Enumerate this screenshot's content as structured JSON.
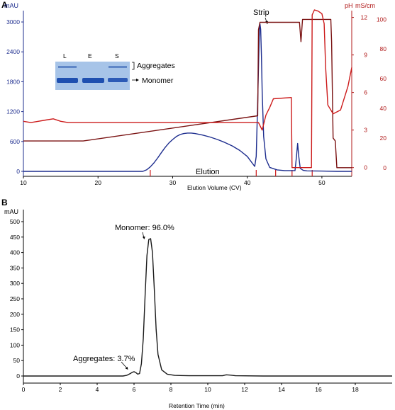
{
  "panels": {
    "a_label": "A",
    "b_label": "B"
  },
  "chart_data": [
    {
      "type": "line",
      "panel": "A",
      "xlabel": "Elution Volume (CV)",
      "xlim": [
        10,
        54
      ],
      "xticks": [
        10,
        20,
        30,
        40,
        50
      ],
      "left_axis": {
        "label": "mAU",
        "ylim": [
          0,
          3100
        ],
        "ticks": [
          0,
          600,
          1200,
          1800,
          2400,
          3000
        ],
        "color": "#1d2d8e"
      },
      "right_axis_1": {
        "label": "pH",
        "ylim": [
          -0.3,
          13.0
        ],
        "ticks": [
          0,
          3,
          6,
          9,
          12
        ],
        "color": "#b01818"
      },
      "right_axis_2": {
        "label": "mS/cm",
        "ylim": [
          -2.5,
          108
        ],
        "ticks": [
          0,
          20,
          40,
          60,
          80,
          100
        ],
        "color": "#b01818"
      },
      "annotations": {
        "strip": "Strip",
        "elution": "Elution"
      },
      "fraction_marks_x": [
        27.0,
        41.2,
        43.8,
        46.0,
        48.7
      ],
      "series": [
        {
          "axis": "left",
          "color": "#1d2d8e",
          "x": [
            10,
            26,
            26.5,
            27,
            27.5,
            28,
            28.5,
            29,
            29.5,
            30,
            30.5,
            31,
            31.5,
            32,
            32.5,
            33,
            34,
            35,
            36,
            37,
            38,
            39,
            40,
            40.5,
            41,
            41.2,
            41.4,
            41.6,
            41.7,
            41.8,
            41.9,
            42,
            42.2,
            42.5,
            43,
            44,
            45,
            46.4,
            46.6,
            46.75,
            46.9,
            47.1,
            47.5,
            48,
            50,
            52,
            54
          ],
          "y": [
            0,
            0,
            30,
            90,
            170,
            270,
            380,
            480,
            570,
            640,
            700,
            740,
            760,
            770,
            770,
            760,
            730,
            690,
            640,
            580,
            510,
            420,
            300,
            200,
            100,
            300,
            1400,
            2700,
            2960,
            2850,
            2300,
            1600,
            700,
            250,
            80,
            30,
            15,
            15,
            300,
            560,
            300,
            60,
            20,
            10,
            5,
            0,
            0
          ]
        },
        {
          "axis": "right_2",
          "color": "#7a1212",
          "name_hint": "conductivity",
          "x": [
            10,
            18,
            41.4,
            41.5,
            41.7,
            47,
            47.2,
            47.4,
            48.5,
            51.2,
            51.3,
            51.5,
            51.8,
            52,
            54
          ],
          "y": [
            18,
            18,
            35,
            93,
            98,
            98,
            85,
            100,
            100,
            100,
            85,
            20,
            18,
            0,
            0
          ]
        },
        {
          "axis": "right_1",
          "color": "#cc1a1a",
          "name_hint": "pH",
          "x": [
            10,
            11,
            12,
            13,
            14,
            15,
            16,
            17,
            18,
            20,
            25,
            30,
            35,
            40,
            41,
            41.5,
            42,
            42.5,
            43,
            43.5,
            45.9,
            46,
            48.6,
            48.7,
            49,
            49.5,
            50,
            50.3,
            50.5,
            50.8,
            51,
            51.5,
            52.5,
            53.5,
            54
          ],
          "y": [
            3.7,
            3.6,
            3.7,
            3.8,
            3.9,
            3.7,
            3.6,
            3.6,
            3.6,
            3.6,
            3.6,
            3.6,
            3.6,
            3.6,
            3.6,
            3.6,
            3.0,
            4.2,
            4.8,
            5.5,
            5.6,
            0,
            0,
            12.2,
            12.6,
            12.5,
            12.3,
            11.5,
            8,
            5,
            4.8,
            4.3,
            4.6,
            6.5,
            8.0
          ]
        }
      ],
      "inset": {
        "lanes": [
          "L",
          "E",
          "S"
        ],
        "labels": [
          "Aggregates",
          "Monomer"
        ]
      }
    },
    {
      "type": "line",
      "panel": "B",
      "xlabel": "Retention Time (min)",
      "ylabel": "mAU",
      "xlim": [
        0,
        20
      ],
      "ylim": [
        -10,
        520
      ],
      "xticks": [
        0,
        2,
        4,
        6,
        8,
        10,
        12,
        14,
        16,
        18
      ],
      "yticks": [
        0,
        50,
        100,
        150,
        200,
        250,
        300,
        350,
        400,
        450,
        500
      ],
      "annotations": {
        "monomer": "Monomer: 96.0%",
        "aggregates": "Aggregates: 3.7%"
      },
      "series": [
        {
          "color": "#1a1a1a",
          "x": [
            0,
            5.4,
            5.6,
            5.8,
            5.9,
            6.0,
            6.1,
            6.2,
            6.3,
            6.4,
            6.5,
            6.6,
            6.7,
            6.8,
            6.9,
            7.0,
            7.1,
            7.2,
            7.3,
            7.5,
            7.8,
            8.2,
            9,
            10.8,
            11.0,
            11.2,
            11.5,
            13,
            20
          ],
          "y": [
            0,
            0,
            2,
            8,
            12,
            14,
            11,
            6,
            8,
            40,
            120,
            260,
            390,
            442,
            445,
            400,
            280,
            150,
            70,
            20,
            6,
            2,
            1,
            1,
            4,
            3,
            1,
            0,
            0
          ]
        }
      ]
    }
  ]
}
